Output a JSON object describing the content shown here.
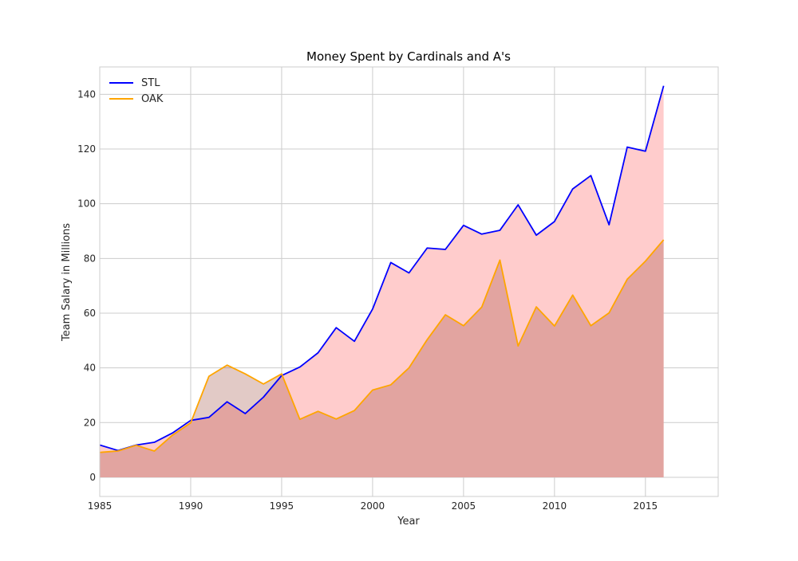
{
  "chart_data": {
    "type": "area",
    "title": "Money Spent by Cardinals and A's",
    "xlabel": "Year",
    "ylabel": "Team Salary in Millions",
    "xlim": [
      1985,
      2019
    ],
    "ylim": [
      -7,
      150
    ],
    "x_ticks": [
      1985,
      1990,
      1995,
      2000,
      2005,
      2010,
      2015
    ],
    "y_ticks": [
      0,
      20,
      40,
      60,
      80,
      100,
      120,
      140
    ],
    "grid": true,
    "legend_position": "top-left",
    "x": [
      1985,
      1986,
      1987,
      1988,
      1989,
      1990,
      1991,
      1992,
      1993,
      1994,
      1995,
      1996,
      1997,
      1998,
      1999,
      2000,
      2001,
      2002,
      2003,
      2004,
      2005,
      2006,
      2007,
      2008,
      2009,
      2010,
      2011,
      2012,
      2013,
      2014,
      2015,
      2016
    ],
    "series": [
      {
        "name": "STL",
        "color": "#0000ff",
        "values": [
          11.8,
          9.8,
          11.8,
          12.8,
          16.2,
          20.8,
          21.9,
          27.6,
          23.3,
          29.3,
          37.2,
          40.3,
          45.5,
          54.7,
          49.7,
          61.5,
          78.5,
          74.7,
          83.8,
          83.3,
          92.1,
          88.9,
          90.3,
          99.6,
          88.5,
          93.5,
          105.4,
          110.3,
          92.3,
          120.7,
          119.2,
          143.1
        ]
      },
      {
        "name": "OAK",
        "color": "#ffa500",
        "values": [
          9.1,
          9.6,
          11.7,
          9.6,
          15.4,
          19.9,
          36.9,
          41.0,
          37.8,
          34.1,
          37.8,
          21.2,
          24.1,
          21.3,
          24.4,
          31.9,
          33.8,
          40.0,
          50.3,
          59.4,
          55.4,
          62.2,
          79.4,
          48.0,
          62.3,
          55.3,
          66.6,
          55.4,
          60.1,
          72.4,
          79.0,
          86.8
        ]
      }
    ],
    "fill_colors": {
      "stl_area": "#ffcccc",
      "oak_area": "#8b2a1a",
      "overlap_tint": "#c8d7d4"
    }
  }
}
